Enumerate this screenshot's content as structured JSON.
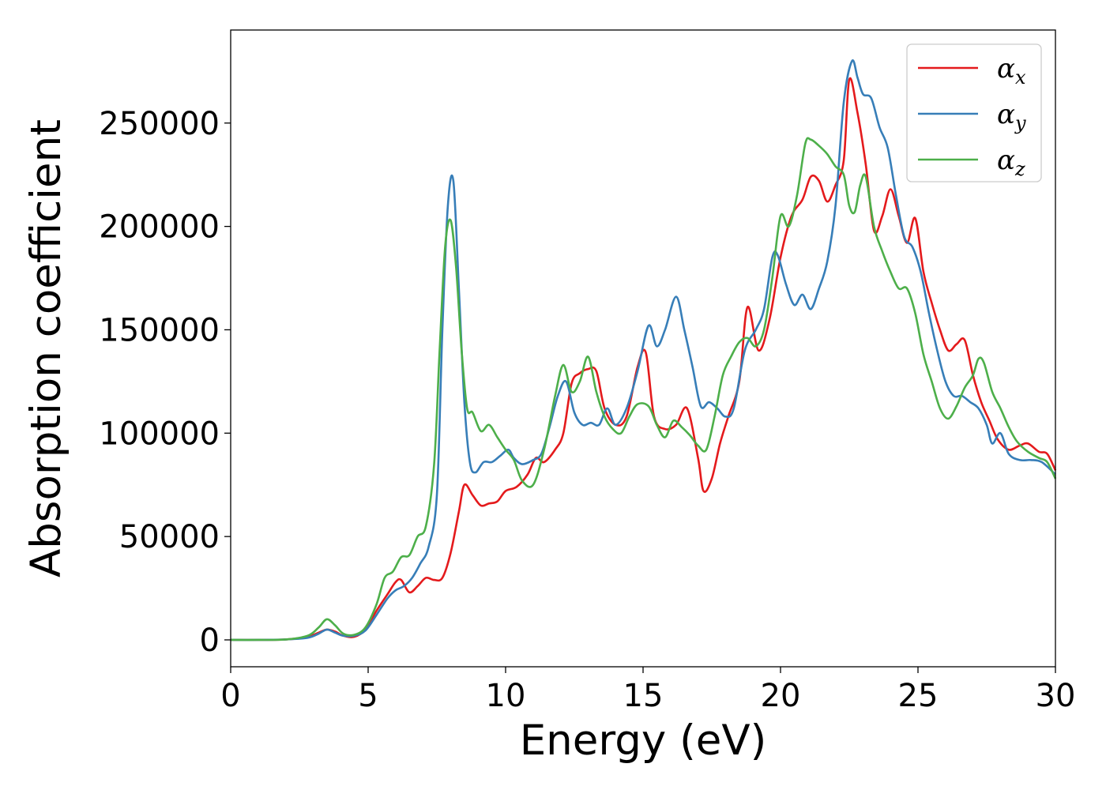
{
  "chart_data": {
    "type": "line",
    "xlabel": "Energy (eV)",
    "ylabel": "Absorption coefficient",
    "xlim": [
      0,
      30
    ],
    "ylim": [
      -13000,
      295000
    ],
    "xticks": [
      "0",
      "5",
      "10",
      "15",
      "20",
      "25",
      "30"
    ],
    "xtick_values": [
      0,
      5,
      10,
      15,
      20,
      25,
      30
    ],
    "yticks": [
      "0",
      "50000",
      "100000",
      "150000",
      "200000",
      "250000"
    ],
    "ytick_values": [
      0,
      50000,
      100000,
      150000,
      200000,
      250000
    ],
    "grid": false,
    "legend_position": "top-right",
    "series": [
      {
        "name": "α",
        "subscript": "x",
        "color": "#e41a1c",
        "x": [
          0,
          1,
          2,
          2.8,
          3.2,
          3.5,
          3.8,
          4.1,
          4.5,
          4.9,
          5.3,
          5.7,
          6.0,
          6.2,
          6.5,
          6.8,
          7.1,
          7.4,
          7.7,
          8.0,
          8.3,
          8.5,
          8.8,
          9.1,
          9.4,
          9.7,
          10.0,
          10.4,
          10.8,
          11.1,
          11.4,
          11.8,
          12.1,
          12.4,
          12.7,
          13.0,
          13.3,
          13.6,
          14.0,
          14.4,
          14.8,
          15.1,
          15.4,
          15.8,
          16.2,
          16.6,
          17.0,
          17.2,
          17.5,
          17.8,
          18.1,
          18.5,
          18.8,
          19.2,
          19.6,
          20.0,
          20.4,
          20.8,
          21.1,
          21.4,
          21.7,
          22.0,
          22.3,
          22.5,
          22.8,
          23.1,
          23.4,
          23.7,
          24.0,
          24.3,
          24.6,
          24.9,
          25.2,
          25.5,
          25.8,
          26.1,
          26.4,
          26.7,
          27.0,
          27.3,
          27.6,
          27.9,
          28.3,
          28.7,
          29.0,
          29.4,
          29.7,
          30.0
        ],
        "y": [
          0,
          0,
          200,
          1500,
          3500,
          5000,
          4000,
          2000,
          1500,
          5000,
          14000,
          22000,
          28000,
          29000,
          23000,
          26000,
          30000,
          29000,
          30000,
          42000,
          62000,
          75000,
          70000,
          65000,
          66000,
          67000,
          72000,
          74000,
          80000,
          88000,
          86000,
          92000,
          100000,
          124000,
          129000,
          131000,
          130000,
          112000,
          104000,
          108000,
          132000,
          139000,
          108000,
          102000,
          104000,
          112000,
          88000,
          72000,
          78000,
          95000,
          108000,
          125000,
          161000,
          140000,
          155000,
          185000,
          205000,
          213000,
          224000,
          222000,
          212000,
          220000,
          232000,
          271000,
          255000,
          230000,
          198000,
          205000,
          218000,
          205000,
          192000,
          204000,
          178000,
          163000,
          150000,
          140000,
          143000,
          145000,
          128000,
          115000,
          106000,
          97000,
          92000,
          94000,
          95000,
          91000,
          90000,
          82000
        ]
      },
      {
        "name": "α",
        "subscript": "y",
        "color": "#377eb8",
        "x": [
          0,
          1,
          2,
          2.8,
          3.2,
          3.5,
          3.8,
          4.1,
          4.5,
          4.9,
          5.3,
          5.7,
          6.0,
          6.3,
          6.6,
          6.9,
          7.2,
          7.5,
          7.7,
          7.9,
          8.1,
          8.3,
          8.5,
          8.7,
          8.9,
          9.2,
          9.5,
          9.8,
          10.1,
          10.3,
          10.6,
          11.0,
          11.3,
          11.6,
          11.9,
          12.2,
          12.5,
          12.8,
          13.1,
          13.4,
          13.7,
          14.0,
          14.4,
          14.8,
          15.2,
          15.5,
          15.8,
          16.2,
          16.5,
          16.8,
          17.1,
          17.4,
          17.7,
          18.0,
          18.3,
          18.7,
          19.1,
          19.4,
          19.7,
          19.9,
          20.2,
          20.5,
          20.8,
          21.1,
          21.4,
          21.7,
          22.0,
          22.3,
          22.6,
          22.8,
          23.0,
          23.3,
          23.6,
          23.9,
          24.2,
          24.5,
          24.8,
          25.1,
          25.4,
          25.7,
          26.0,
          26.3,
          26.6,
          26.9,
          27.2,
          27.5,
          27.7,
          28.0,
          28.3,
          28.7,
          29.1,
          29.5,
          30.0
        ],
        "y": [
          0,
          0,
          200,
          1000,
          3000,
          5000,
          3500,
          2000,
          2000,
          4500,
          12000,
          20000,
          24000,
          26000,
          30000,
          37000,
          45000,
          70000,
          150000,
          210000,
          222000,
          170000,
          115000,
          86000,
          81000,
          86000,
          86000,
          89000,
          92000,
          88000,
          85000,
          87000,
          90000,
          103000,
          118000,
          125000,
          110000,
          104000,
          105000,
          104000,
          112000,
          104000,
          112000,
          130000,
          152000,
          142000,
          150000,
          166000,
          150000,
          132000,
          113000,
          115000,
          112000,
          108000,
          112000,
          140000,
          150000,
          160000,
          185000,
          186000,
          172000,
          162000,
          167000,
          160000,
          170000,
          183000,
          210000,
          260000,
          280000,
          272000,
          264000,
          262000,
          248000,
          238000,
          215000,
          195000,
          190000,
          178000,
          158000,
          140000,
          125000,
          118000,
          118000,
          115000,
          112000,
          104000,
          95000,
          100000,
          90000,
          87000,
          87000,
          86000,
          80000
        ]
      },
      {
        "name": "α",
        "subscript": "z",
        "color": "#4daf4a",
        "x": [
          0,
          1,
          2,
          2.8,
          3.2,
          3.5,
          3.8,
          4.1,
          4.5,
          4.9,
          5.3,
          5.6,
          5.9,
          6.2,
          6.5,
          6.8,
          7.1,
          7.4,
          7.6,
          7.8,
          8.0,
          8.2,
          8.4,
          8.6,
          8.8,
          9.1,
          9.4,
          9.7,
          10.0,
          10.3,
          10.6,
          11.0,
          11.4,
          11.8,
          12.1,
          12.4,
          12.7,
          13.0,
          13.3,
          13.6,
          13.9,
          14.2,
          14.5,
          14.8,
          15.2,
          15.5,
          15.8,
          16.1,
          16.4,
          16.7,
          17.0,
          17.3,
          17.6,
          17.9,
          18.2,
          18.5,
          18.8,
          19.1,
          19.4,
          19.7,
          20.0,
          20.3,
          20.6,
          20.9,
          21.1,
          21.4,
          21.7,
          22.0,
          22.3,
          22.5,
          22.7,
          22.9,
          23.1,
          23.4,
          23.7,
          24.0,
          24.3,
          24.6,
          24.9,
          25.2,
          25.5,
          25.8,
          26.1,
          26.4,
          26.7,
          27.0,
          27.2,
          27.4,
          27.7,
          28.0,
          28.3,
          28.6,
          29.0,
          29.4,
          29.7,
          30.0
        ],
        "y": [
          0,
          0,
          200,
          2000,
          6000,
          10000,
          7000,
          3000,
          2500,
          6000,
          17000,
          30000,
          33000,
          40000,
          41000,
          50000,
          55000,
          85000,
          140000,
          190000,
          203000,
          180000,
          140000,
          112000,
          110000,
          101000,
          104000,
          98000,
          92000,
          87000,
          77000,
          75000,
          92000,
          118000,
          133000,
          120000,
          125000,
          137000,
          120000,
          108000,
          102000,
          100000,
          108000,
          114000,
          113000,
          104000,
          98000,
          106000,
          103000,
          99000,
          94000,
          92000,
          108000,
          128000,
          137000,
          144000,
          146000,
          142000,
          150000,
          175000,
          205000,
          200000,
          215000,
          240000,
          242000,
          239000,
          235000,
          229000,
          225000,
          210000,
          207000,
          220000,
          224000,
          200000,
          188000,
          178000,
          170000,
          170000,
          158000,
          138000,
          125000,
          112000,
          107000,
          113000,
          122000,
          128000,
          136000,
          134000,
          120000,
          112000,
          103000,
          96000,
          91000,
          88000,
          86000,
          78000
        ]
      }
    ]
  }
}
